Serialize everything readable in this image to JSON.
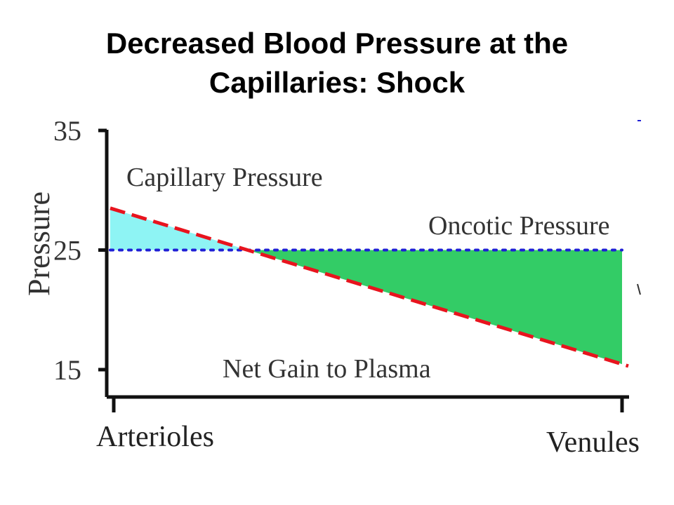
{
  "slide": {
    "title_line1": "Decreased Blood Pressure at the",
    "title_line2": "Capillaries:  Shock"
  },
  "chart_data": {
    "type": "line",
    "title": "Decreased Blood Pressure at the Capillaries:  Shock",
    "ylabel": "Pressure",
    "xlabel": "",
    "x_categories": [
      "Arterioles",
      "Venules"
    ],
    "y_ticks": [
      15,
      25,
      35
    ],
    "ylim": [
      15,
      35
    ],
    "series": [
      {
        "name": "Capillary Pressure",
        "style": "dashed",
        "color": "#e8141e",
        "values": [
          28.5,
          15.3
        ]
      },
      {
        "name": "Oncotic Pressure",
        "style": "dotted",
        "color": "#1f1fd6",
        "values": [
          25,
          25
        ]
      }
    ],
    "regions": [
      {
        "label": "",
        "color": "#8ef4f4",
        "meaning": "capillary pressure above oncotic pressure"
      },
      {
        "label": "Net Gain to Plasma",
        "color": "#33cc66",
        "meaning": "oncotic pressure above capillary pressure"
      }
    ],
    "annotations": [
      "Capillary Pressure",
      "Oncotic Pressure",
      "Net Gain to Plasma"
    ]
  }
}
